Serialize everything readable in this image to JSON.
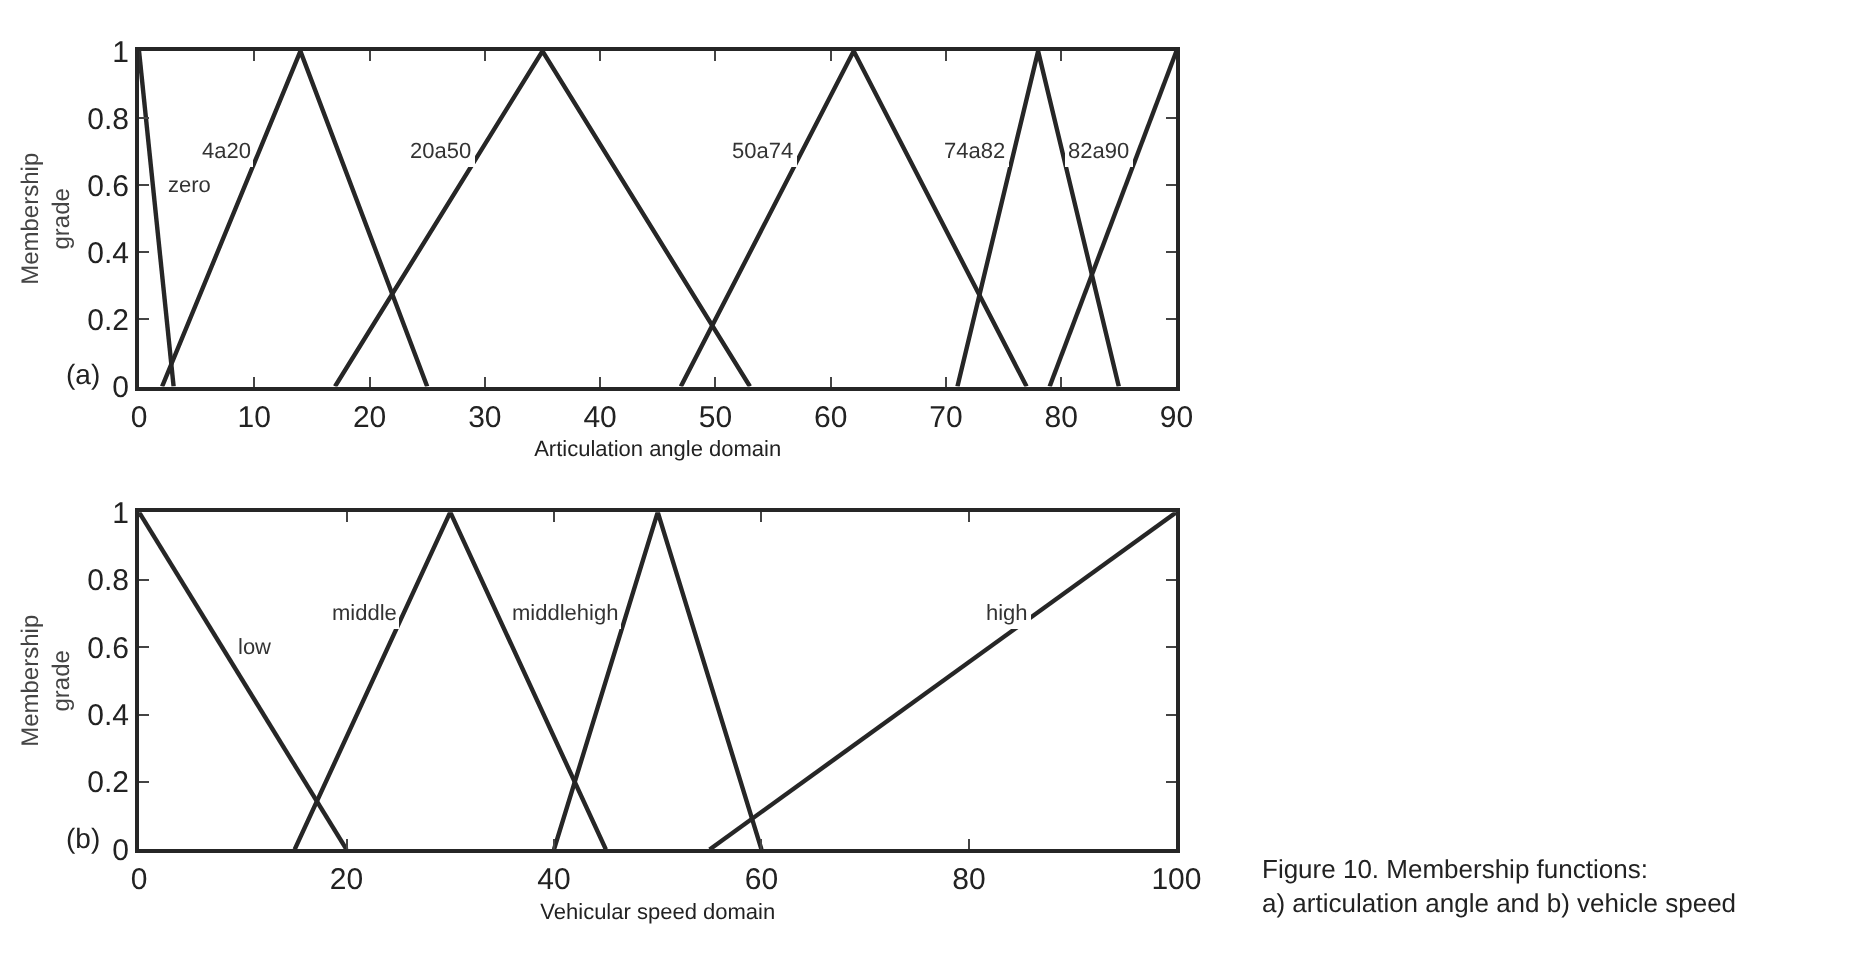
{
  "chart_data": [
    {
      "type": "line",
      "xlabel": "Articulation angle domain",
      "ylabel": "Membership grade",
      "xlim": [
        0,
        90
      ],
      "xticks": [
        0,
        10,
        20,
        30,
        40,
        50,
        60,
        70,
        80,
        90
      ],
      "ylim": [
        0,
        1
      ],
      "yticks": [
        0,
        0.2,
        0.4,
        0.6,
        0.8,
        1
      ],
      "marker": "none",
      "line_style": "solid",
      "annotations": [
        "(a)"
      ],
      "series": [
        {
          "name": "zero",
          "color": "#262626",
          "x": [
            0,
            3
          ],
          "values": [
            1,
            0
          ]
        },
        {
          "name": "4a20",
          "color": "#262626",
          "x": [
            2,
            14,
            25
          ],
          "values": [
            0,
            1,
            0
          ]
        },
        {
          "name": "20a50",
          "color": "#262626",
          "x": [
            17,
            35,
            53
          ],
          "values": [
            0,
            1,
            0
          ]
        },
        {
          "name": "50a74",
          "color": "#262626",
          "x": [
            47,
            62,
            77
          ],
          "values": [
            0,
            1,
            0
          ]
        },
        {
          "name": "74a82",
          "color": "#262626",
          "x": [
            71,
            78,
            85
          ],
          "values": [
            0,
            1,
            0
          ]
        },
        {
          "name": "82a90",
          "color": "#262626",
          "x": [
            79,
            90
          ],
          "values": [
            0,
            1
          ]
        }
      ]
    },
    {
      "type": "line",
      "xlabel": "Vehicular speed domain",
      "ylabel": "Membership grade",
      "xlim": [
        0,
        100
      ],
      "xticks": [
        0,
        20,
        40,
        60,
        80,
        100
      ],
      "ylim": [
        0,
        1
      ],
      "yticks": [
        0,
        0.2,
        0.4,
        0.6,
        0.8,
        1
      ],
      "marker": "none",
      "line_style": "solid",
      "annotations": [
        "(b)",
        "Figure 10. Membership functions:\na) articulation angle and b) vehicle speed"
      ],
      "series": [
        {
          "name": "low",
          "color": "#262626",
          "x": [
            0,
            20
          ],
          "values": [
            1,
            0
          ]
        },
        {
          "name": "middle",
          "color": "#262626",
          "x": [
            15,
            30,
            45
          ],
          "values": [
            0,
            1,
            0
          ]
        },
        {
          "name": "middlehigh",
          "color": "#262626",
          "x": [
            40,
            50,
            60
          ],
          "values": [
            0,
            1,
            0
          ]
        },
        {
          "name": "high",
          "color": "#262626",
          "x": [
            55,
            100
          ],
          "values": [
            0,
            1
          ]
        }
      ]
    }
  ]
}
